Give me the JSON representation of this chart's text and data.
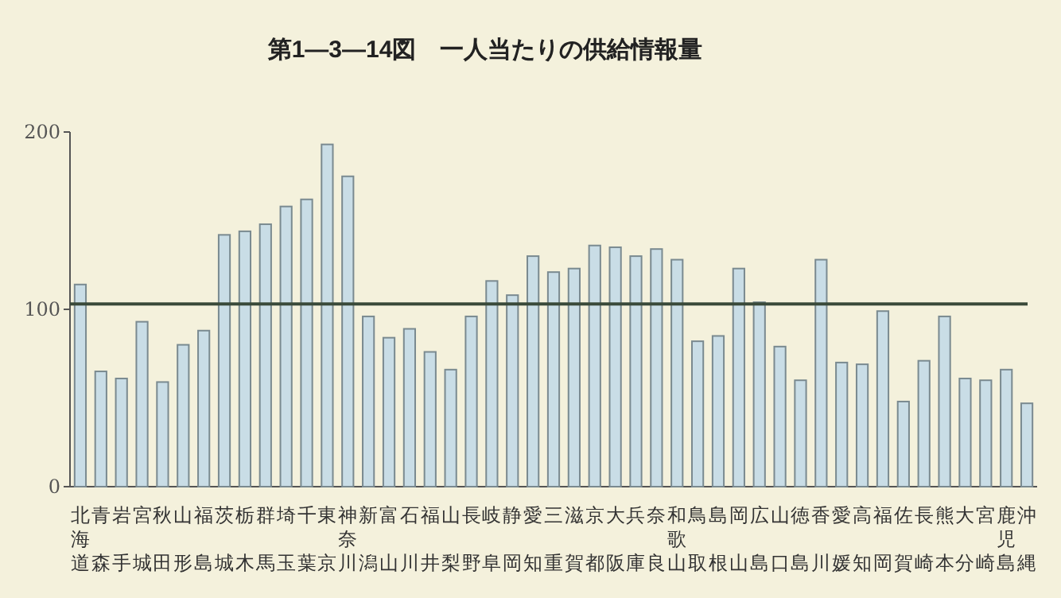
{
  "chart_data": {
    "type": "bar",
    "title": "第1—3—14図　一人当たりの供給情報量",
    "categories": [
      "北海道",
      "青森",
      "岩手",
      "宮城",
      "秋田",
      "山形",
      "福島",
      "茨城",
      "栃木",
      "群馬",
      "埼玉",
      "千葉",
      "東京",
      "神奈川",
      "新潟",
      "富山",
      "石川",
      "福井",
      "山梨",
      "長野",
      "岐阜",
      "静岡",
      "愛知",
      "三重",
      "滋賀",
      "京都",
      "大阪",
      "兵庫",
      "奈良",
      "和歌山",
      "鳥取",
      "島根",
      "岡山",
      "広島",
      "山口",
      "徳島",
      "香川",
      "愛媛",
      "高知",
      "福岡",
      "佐賀",
      "長崎",
      "熊本",
      "大分",
      "宮崎",
      "鹿児島",
      "沖縄"
    ],
    "values": [
      114,
      65,
      61,
      93,
      59,
      80,
      88,
      142,
      144,
      148,
      158,
      162,
      193,
      175,
      96,
      84,
      89,
      76,
      66,
      96,
      116,
      108,
      130,
      121,
      123,
      136,
      135,
      130,
      134,
      128,
      82,
      85,
      123,
      104,
      79,
      60,
      128,
      70,
      69,
      99,
      48,
      71,
      96,
      61,
      60,
      66,
      47
    ],
    "color": "#c9dde6",
    "ylim": [
      0,
      200
    ],
    "yticks": [
      0,
      100,
      200
    ],
    "ref_lines": [
      {
        "axis": "y",
        "value": 103,
        "color": "#3a4a3a"
      }
    ]
  }
}
